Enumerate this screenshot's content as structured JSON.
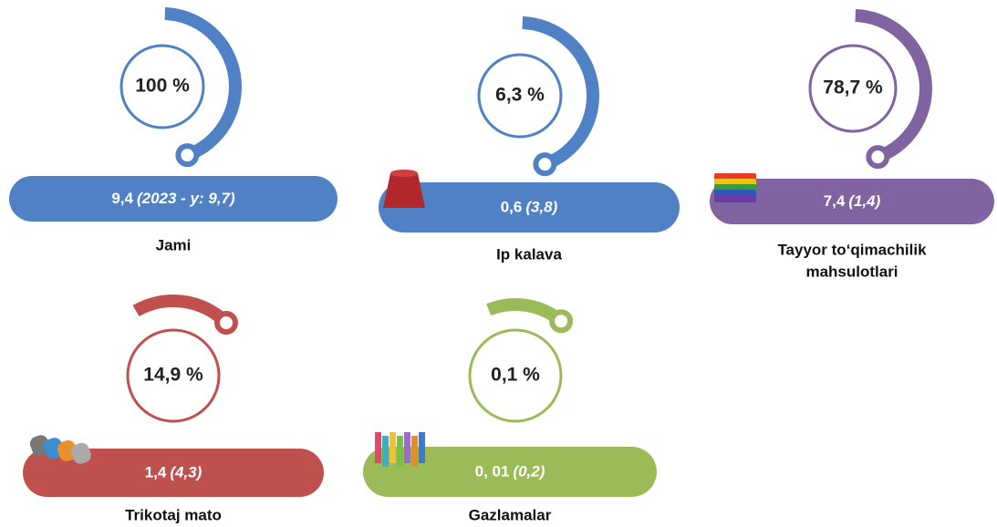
{
  "items": [
    {
      "percent": "100 %",
      "value": "9,4",
      "note": "(2023 - y:  9,7)",
      "label": "Jami",
      "color": "#4f81c4"
    },
    {
      "percent": "6,3 %",
      "value": "0,6",
      "note": "(3,8)",
      "label": "Ip kalava",
      "color": "#4f81c4"
    },
    {
      "percent": "78,7 %",
      "value": "7,4",
      "note": "(1,4)",
      "label": [
        "Tayyor to‘qimachilik",
        "mahsulotlari"
      ],
      "color": "#8064a2"
    },
    {
      "percent": "14,9 %",
      "value": "1,4",
      "note": "(4,3)",
      "label": "Trikotaj mato",
      "color": "#c0504d"
    },
    {
      "percent": "0,1 %",
      "value": "0, 01",
      "note": "(0,2)",
      "label": "Gazlamalar",
      "color": "#9bbb59"
    }
  ]
}
